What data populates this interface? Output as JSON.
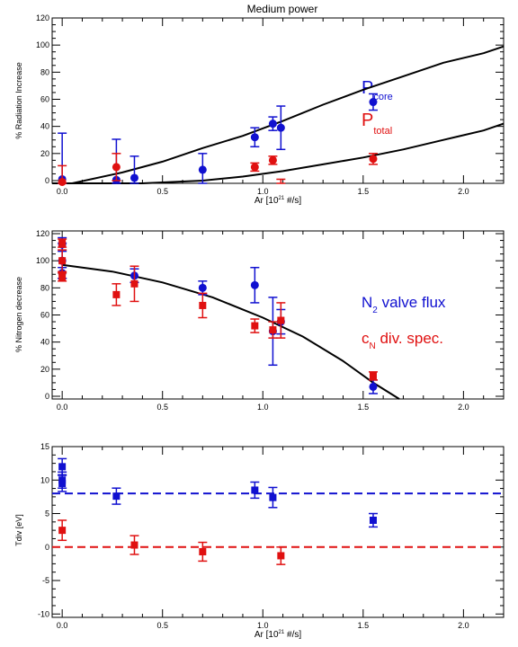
{
  "colors": {
    "core": "#1010d0",
    "total": "#e01010",
    "fit": "#000000"
  },
  "chart_data": [
    {
      "type": "scatter",
      "title": "Medium power",
      "xlabel": "Ar [10",
      "xlabel_sup": "21",
      "xlabel_tail": " #/s]",
      "ylabel": "% Radiation Increase",
      "xlim": [
        -0.05,
        2.2
      ],
      "ylim": [
        -2,
        120
      ],
      "xticks": [
        "0.0",
        "0.5",
        "1.0",
        "1.5",
        "2.0"
      ],
      "yticks": [
        "0",
        "20",
        "40",
        "60",
        "80",
        "100",
        "120"
      ],
      "legend": [
        {
          "main": "P",
          "sub": "core"
        },
        {
          "main": "P",
          "sub": "total"
        }
      ],
      "series": [
        {
          "marker": "circle",
          "points": [
            {
              "x": 0.0,
              "y": 1,
              "err": 34
            },
            {
              "x": 0.27,
              "y": 0.5,
              "err": 30
            },
            {
              "x": 0.36,
              "y": 2,
              "err": 16
            },
            {
              "x": 0.7,
              "y": 8,
              "err": 12
            },
            {
              "x": 0.96,
              "y": 32,
              "err": 7
            },
            {
              "x": 1.05,
              "y": 42,
              "err": 5
            },
            {
              "x": 1.09,
              "y": 39,
              "err": 16
            },
            {
              "x": 1.55,
              "y": 58,
              "err": 6
            }
          ]
        },
        {
          "marker": "circle",
          "points": [
            {
              "x": 0.0,
              "y": -1,
              "err": 12
            },
            {
              "x": 0.27,
              "y": 10,
              "err": 10
            },
            {
              "x": 0.96,
              "y": 10,
              "err": 3
            },
            {
              "x": 1.05,
              "y": 15,
              "err": 3
            },
            {
              "x": 1.09,
              "y": -3,
              "err": 4
            },
            {
              "x": 1.55,
              "y": 16,
              "err": 4
            }
          ]
        }
      ],
      "fits": [
        {
          "x": [
            -0.05,
            0.05,
            0.3,
            0.5,
            0.7,
            0.9,
            1.1,
            1.3,
            1.5,
            1.7,
            1.9,
            2.1,
            2.2
          ],
          "y": [
            -4,
            -2,
            6,
            14,
            24,
            33,
            44,
            56,
            67,
            77,
            87,
            94,
            99
          ]
        },
        {
          "x": [
            0.0,
            0.4,
            0.7,
            0.9,
            1.1,
            1.3,
            1.5,
            1.7,
            1.9,
            2.1,
            2.2
          ],
          "y": [
            -4,
            -3,
            0,
            3,
            7,
            12,
            17,
            23,
            30,
            37,
            42
          ]
        }
      ]
    },
    {
      "type": "scatter",
      "xlabel": "",
      "ylabel": "% Nitrogen decrease",
      "xlim": [
        -0.05,
        2.2
      ],
      "ylim": [
        -2,
        122
      ],
      "xticks": [
        "0.0",
        "0.5",
        "1.0",
        "1.5",
        "2.0"
      ],
      "yticks": [
        "0",
        "20",
        "40",
        "60",
        "80",
        "100",
        "120"
      ],
      "legend": [
        {
          "main": "N",
          "sub": "2",
          "tail": " valve flux"
        },
        {
          "main": "c",
          "sub": "N",
          "tail": " div. spec."
        }
      ],
      "series": [
        {
          "marker": "circle",
          "points": [
            {
              "x": 0.0,
              "y": 112,
              "err": 5
            },
            {
              "x": 0.0,
              "y": 100,
              "err": 13
            },
            {
              "x": 0.0,
              "y": 91,
              "err": 4
            },
            {
              "x": 0.36,
              "y": 89,
              "err": 5
            },
            {
              "x": 0.7,
              "y": 80,
              "err": 5
            },
            {
              "x": 0.96,
              "y": 82,
              "err": 13
            },
            {
              "x": 1.05,
              "y": 48,
              "err": 25
            },
            {
              "x": 1.09,
              "y": 55,
              "err": 9
            },
            {
              "x": 1.55,
              "y": 7,
              "err": 5
            }
          ]
        },
        {
          "marker": "square",
          "points": [
            {
              "x": 0.0,
              "y": 113,
              "err": 3
            },
            {
              "x": 0.0,
              "y": 100,
              "err": 8
            },
            {
              "x": 0.0,
              "y": 88,
              "err": 3
            },
            {
              "x": 0.27,
              "y": 75,
              "err": 8
            },
            {
              "x": 0.36,
              "y": 83,
              "err": 13
            },
            {
              "x": 0.7,
              "y": 67,
              "err": 9
            },
            {
              "x": 0.96,
              "y": 52,
              "err": 5
            },
            {
              "x": 1.05,
              "y": 49,
              "err": 6
            },
            {
              "x": 1.09,
              "y": 56,
              "err": 13
            },
            {
              "x": 1.55,
              "y": 15,
              "err": 3
            }
          ]
        }
      ],
      "fits": [
        {
          "x": [
            0.0,
            0.25,
            0.5,
            0.75,
            1.0,
            1.2,
            1.4,
            1.55,
            1.68
          ],
          "y": [
            97,
            92,
            84,
            73,
            58,
            44,
            26,
            10,
            -2
          ]
        }
      ]
    },
    {
      "type": "scatter",
      "xlabel": "Ar [10",
      "xlabel_sup": "21",
      "xlabel_tail": " #/s]",
      "ylabel": "Tdiv [eV]",
      "xlim": [
        -0.05,
        2.2
      ],
      "ylim": [
        -10.5,
        15
      ],
      "xticks": [
        "0.0",
        "0.5",
        "1.0",
        "1.5",
        "2.0"
      ],
      "yticks": [
        "-10",
        "-5",
        "0",
        "5",
        "10",
        "15"
      ],
      "series": [
        {
          "marker": "square",
          "points": [
            {
              "x": 0.0,
              "y": 12,
              "err": 1.2
            },
            {
              "x": 0.0,
              "y": 10,
              "err": 1.2
            },
            {
              "x": 0.0,
              "y": 9.5,
              "err": 1.2
            },
            {
              "x": 0.27,
              "y": 7.6,
              "err": 1.2
            },
            {
              "x": 0.96,
              "y": 8.5,
              "err": 1.2
            },
            {
              "x": 1.05,
              "y": 7.4,
              "err": 1.5
            },
            {
              "x": 1.55,
              "y": 4.0,
              "err": 1.0
            }
          ]
        },
        {
          "marker": "square",
          "points": [
            {
              "x": 0.0,
              "y": 2.5,
              "err": 1.5
            },
            {
              "x": 0.36,
              "y": 0.3,
              "err": 1.4
            },
            {
              "x": 0.7,
              "y": -0.7,
              "err": 1.4
            },
            {
              "x": 1.09,
              "y": -1.3,
              "err": 1.3
            }
          ]
        }
      ],
      "hlines": [
        {
          "y": 8
        },
        {
          "y": 0
        }
      ]
    }
  ]
}
